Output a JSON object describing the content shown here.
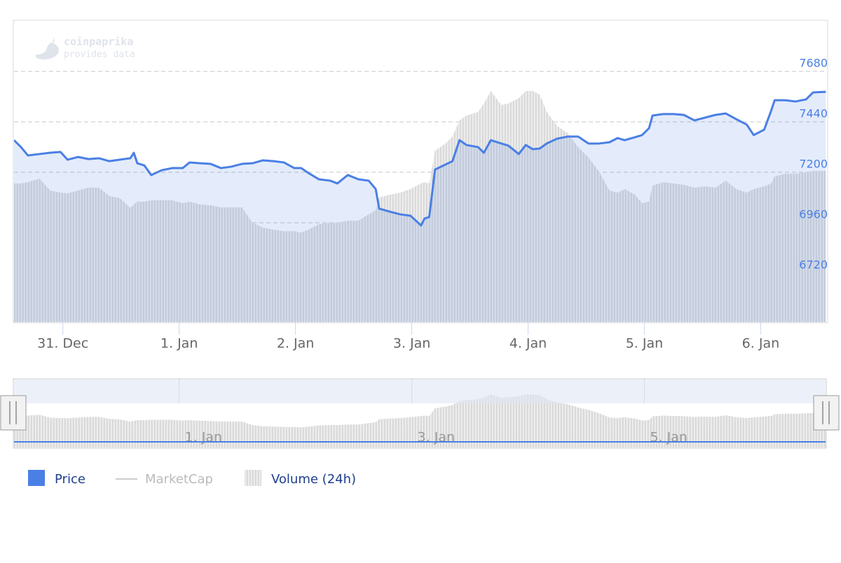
{
  "chart_data": {
    "type": "line",
    "watermark": [
      "coinpaprika",
      "provides data"
    ],
    "x": [
      -0.42,
      -0.36,
      -0.3,
      -0.2,
      -0.11,
      -0.02,
      0.04,
      0.13,
      0.22,
      0.31,
      0.4,
      0.49,
      0.58,
      0.61,
      0.64,
      0.7,
      0.76,
      0.85,
      0.94,
      1.03,
      1.09,
      1.18,
      1.27,
      1.36,
      1.45,
      1.54,
      1.63,
      1.72,
      1.81,
      1.9,
      1.99,
      2.05,
      2.11,
      2.2,
      2.3,
      2.36,
      2.45,
      2.54,
      2.63,
      2.69,
      2.72,
      2.81,
      2.9,
      2.99,
      3.08,
      3.11,
      3.15,
      3.2,
      3.29,
      3.35,
      3.41,
      3.47,
      3.57,
      3.62,
      3.68,
      3.77,
      3.83,
      3.92,
      3.98,
      4.04,
      4.1,
      4.16,
      4.25,
      4.34,
      4.43,
      4.52,
      4.61,
      4.7,
      4.77,
      4.83,
      4.92,
      4.98,
      5.04,
      5.07,
      5.16,
      5.25,
      5.34,
      5.43,
      5.52,
      5.61,
      5.7,
      5.79,
      5.88,
      5.94,
      6.03,
      6.09,
      6.12,
      6.21,
      6.3,
      6.39,
      6.45,
      6.56
    ],
    "series": [
      {
        "name": "Price",
        "color": "#4a7fe5",
        "values": [
          7353,
          7320,
          7280,
          7287,
          7293,
          7297,
          7260,
          7273,
          7263,
          7267,
          7253,
          7260,
          7267,
          7293,
          7243,
          7233,
          7187,
          7210,
          7220,
          7220,
          7247,
          7243,
          7240,
          7220,
          7227,
          7240,
          7243,
          7257,
          7253,
          7247,
          7220,
          7220,
          7197,
          7167,
          7160,
          7147,
          7187,
          7167,
          7160,
          7120,
          7027,
          7013,
          7000,
          6993,
          6947,
          6980,
          6987,
          7213,
          7237,
          7253,
          7353,
          7330,
          7320,
          7293,
          7353,
          7337,
          7327,
          7287,
          7330,
          7310,
          7313,
          7337,
          7360,
          7370,
          7370,
          7337,
          7337,
          7343,
          7363,
          7353,
          7367,
          7377,
          7410,
          7470,
          7477,
          7477,
          7473,
          7447,
          7460,
          7473,
          7480,
          7453,
          7427,
          7377,
          7403,
          7493,
          7543,
          7543,
          7537,
          7547,
          7580,
          7583
        ]
      },
      {
        "name": "MarketCap",
        "color": "#cccccc",
        "visible": false
      },
      {
        "name": "Volume (24h)",
        "color": "#d4d4d4",
        "values": [
          7147,
          7147,
          7153,
          7170,
          7113,
          7103,
          7100,
          7113,
          7127,
          7127,
          7087,
          7077,
          7030,
          7047,
          7060,
          7060,
          7067,
          7067,
          7067,
          7053,
          7060,
          7047,
          7043,
          7033,
          7033,
          7033,
          6960,
          6937,
          6927,
          6920,
          6920,
          6913,
          6927,
          6953,
          6960,
          6960,
          6970,
          6970,
          7000,
          7020,
          7080,
          7093,
          7103,
          7120,
          7147,
          7153,
          7147,
          7303,
          7337,
          7370,
          7447,
          7470,
          7487,
          7527,
          7587,
          7520,
          7527,
          7553,
          7587,
          7587,
          7570,
          7487,
          7420,
          7387,
          7320,
          7270,
          7203,
          7113,
          7103,
          7120,
          7093,
          7053,
          7060,
          7137,
          7153,
          7147,
          7140,
          7127,
          7133,
          7127,
          7160,
          7120,
          7103,
          7120,
          7133,
          7147,
          7180,
          7193,
          7193,
          7200,
          7207,
          7207
        ]
      }
    ],
    "xlim": [
      -0.42,
      6.57
    ],
    "xticks": [
      {
        "value": 0,
        "label": "31. Dec"
      },
      {
        "value": 1,
        "label": "1. Jan"
      },
      {
        "value": 2,
        "label": "2. Jan"
      },
      {
        "value": 3,
        "label": "3. Jan"
      },
      {
        "value": 4,
        "label": "4. Jan"
      },
      {
        "value": 5,
        "label": "5. Jan"
      },
      {
        "value": 6,
        "label": "6. Jan"
      }
    ],
    "ylim": [
      6487,
      7920
    ],
    "yticks": [
      6720,
      6960,
      7200,
      7440,
      7680
    ],
    "grid": true,
    "navigator_xticks": [
      {
        "value": 1,
        "label": "1. Jan"
      },
      {
        "value": 3,
        "label": "3. Jan"
      },
      {
        "value": 5,
        "label": "5. Jan"
      }
    ]
  }
}
